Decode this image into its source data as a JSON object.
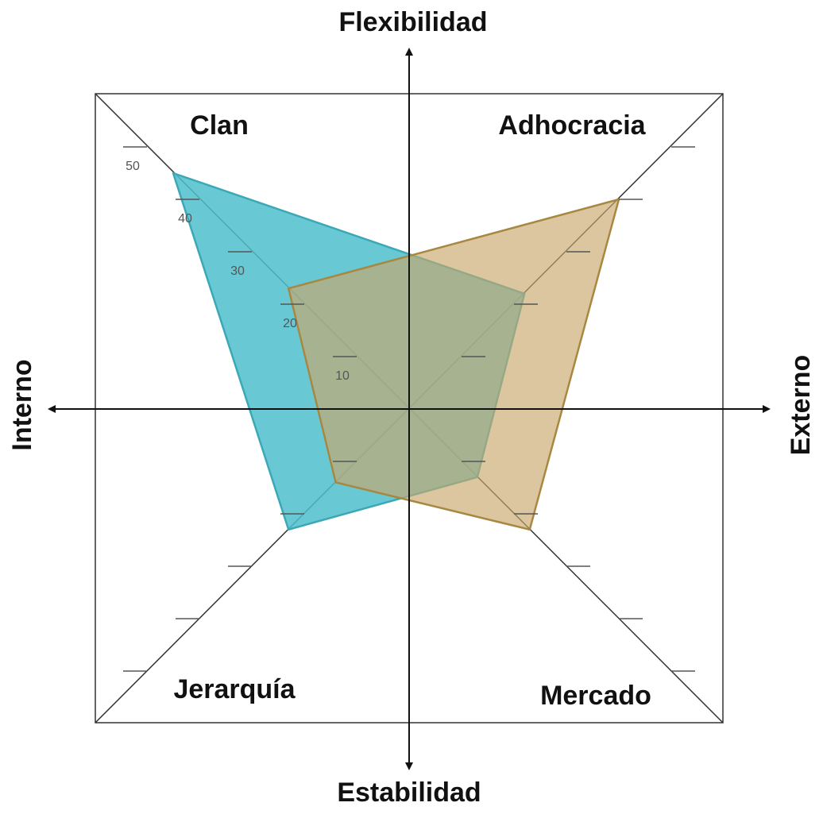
{
  "chart_data": {
    "type": "radar",
    "axis_labels": {
      "top": "Flexibilidad",
      "bottom": "Estabilidad",
      "left": "Interno",
      "right": "Externo"
    },
    "categories": [
      "Clan",
      "Adhocracia",
      "Mercado",
      "Jerarquía"
    ],
    "series": [
      {
        "color": "#4dbfcc",
        "values": [
          45,
          22,
          13,
          23
        ]
      },
      {
        "color": "#c9a86c",
        "values": [
          23,
          40,
          23,
          14
        ]
      }
    ],
    "rlim": [
      0,
      60
    ],
    "rticks": [
      10,
      20,
      30,
      40,
      50
    ]
  }
}
